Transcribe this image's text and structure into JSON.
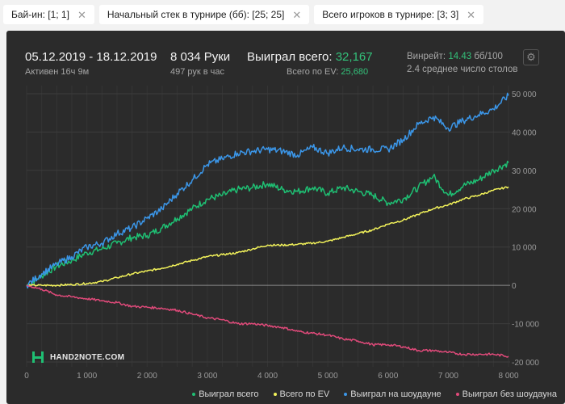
{
  "filters": [
    {
      "label": "Бай-ин: [1; 1]"
    },
    {
      "label": "Начальный стек в турнире (бб): [25; 25]"
    },
    {
      "label": "Всего игроков в турнире: [3; 3]"
    }
  ],
  "header": {
    "date_range": "05.12.2019 - 18.12.2019",
    "active": "Активен 16ч 9м",
    "hands": "8 034 Руки",
    "hands_per_hour": "497 рук в час",
    "won_total_label": "Выиграл всего:",
    "won_total_value": "32,167",
    "ev_total_label": "Всего по EV:",
    "ev_total_value": "25,680",
    "winrate_label": "Винрейт:",
    "winrate_value": "14.43",
    "winrate_unit": "бб/100",
    "tables": "2.4 среднее число столов"
  },
  "brand": {
    "name": "HAND2NOTE.COM"
  },
  "colors": {
    "won": "#1fbf73",
    "ev": "#f2f25a",
    "showdown": "#3b96e8",
    "nonshowdown": "#e04a7a",
    "accent": "#33c17a"
  },
  "chart_data": {
    "type": "line",
    "xlim": [
      0,
      8000
    ],
    "ylim": [
      -20000,
      50000
    ],
    "x_ticks": [
      0,
      1000,
      2000,
      3000,
      4000,
      5000,
      6000,
      7000,
      8000
    ],
    "x_tick_labels": [
      "0",
      "1 000",
      "2 000",
      "3 000",
      "4 000",
      "5 000",
      "6 000",
      "7 000",
      "8 000"
    ],
    "y_ticks": [
      50000,
      40000,
      30000,
      20000,
      10000,
      0,
      -10000,
      -20000
    ],
    "y_tick_labels": [
      "50 000",
      "40 000",
      "30 000",
      "20 000",
      "10 000",
      "0",
      "-10 000",
      "-20 000"
    ],
    "grid": true,
    "legend_position": "bottom-right",
    "x": [
      0,
      250,
      500,
      750,
      1000,
      1250,
      1500,
      1750,
      2000,
      2250,
      2500,
      2750,
      3000,
      3250,
      3500,
      3750,
      4000,
      4250,
      4500,
      4750,
      5000,
      5250,
      5500,
      5750,
      6000,
      6250,
      6500,
      6750,
      7000,
      7250,
      7500,
      7750,
      8000
    ],
    "series": [
      {
        "name": "Выиграл всего",
        "color": "#1fbf73",
        "values": [
          0,
          2500,
          5000,
          6500,
          8500,
          9500,
          11000,
          12500,
          13000,
          15000,
          17500,
          20000,
          22500,
          23500,
          25000,
          25500,
          26500,
          25000,
          24500,
          25500,
          24000,
          25500,
          24500,
          23500,
          21500,
          22500,
          25500,
          28500,
          23500,
          26000,
          27500,
          30000,
          32000
        ]
      },
      {
        "name": "Всего по EV",
        "color": "#f2f25a",
        "values": [
          0,
          0,
          0,
          200,
          500,
          1000,
          2000,
          3000,
          3700,
          4500,
          5500,
          6500,
          7500,
          8000,
          8500,
          9500,
          10500,
          10500,
          10700,
          11000,
          11500,
          12500,
          13500,
          14500,
          16000,
          17000,
          18500,
          20000,
          21000,
          22500,
          23500,
          24800,
          25700
        ]
      },
      {
        "name": "Выиграл на шоудауне",
        "color": "#3b96e8",
        "values": [
          0,
          3000,
          5500,
          7500,
          10000,
          11000,
          13500,
          15000,
          17500,
          20000,
          24000,
          27500,
          31500,
          33000,
          34500,
          35000,
          35500,
          35000,
          34000,
          36000,
          34500,
          36000,
          35500,
          35500,
          35500,
          38000,
          42000,
          44000,
          41000,
          43000,
          44500,
          46000,
          49500
        ]
      },
      {
        "name": "Выиграл без шоудауна",
        "color": "#e04a7a",
        "values": [
          0,
          -1000,
          -2500,
          -3000,
          -3500,
          -4000,
          -4500,
          -5500,
          -5700,
          -6000,
          -6500,
          -7500,
          -8500,
          -9000,
          -10000,
          -10000,
          -10500,
          -11000,
          -12000,
          -12500,
          -13000,
          -14000,
          -14500,
          -15500,
          -15500,
          -16000,
          -17000,
          -17000,
          -17500,
          -18000,
          -18000,
          -18000,
          -18500
        ]
      }
    ]
  }
}
